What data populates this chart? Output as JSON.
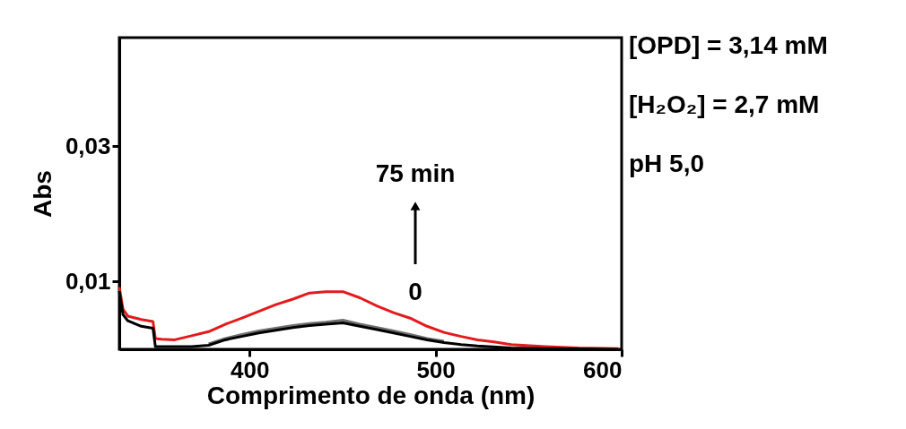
{
  "chart_data": {
    "type": "line",
    "xlabel": "Comprimento de onda (nm)",
    "ylabel": "Abs",
    "xlim": [
      330,
      600
    ],
    "ylim": [
      0,
      0.046
    ],
    "xticks": [
      400,
      500,
      600
    ],
    "yticks": [
      {
        "value": 0.01,
        "label": "0,01"
      },
      {
        "value": 0.03,
        "label": "0,03"
      }
    ],
    "grid": false,
    "marker": "none",
    "line_style": "solid",
    "series": [
      {
        "color": "#e41a1c",
        "x": [
          330,
          332,
          334.6,
          341.8,
          348.1,
          349.4,
          352.6,
          359.8,
          368.9,
          378,
          387,
          395.9,
          405,
          414.1,
          423.3,
          432.2,
          441,
          450.2,
          459.3,
          468.5,
          477.4,
          486.3,
          495.4,
          504.5,
          513.7,
          522.5,
          531.4,
          540.6,
          558.8,
          576.9,
          598.3
        ],
        "values": [
          0.0092,
          0.0059,
          0.0049,
          0.0044,
          0.0041,
          0.0016,
          0.0015,
          0.0014,
          0.002,
          0.0026,
          0.0037,
          0.0046,
          0.0056,
          0.0066,
          0.0074,
          0.0083,
          0.0085,
          0.0085,
          0.0076,
          0.0064,
          0.0054,
          0.0046,
          0.0034,
          0.0025,
          0.0019,
          0.0014,
          0.0011,
          0.0007,
          0.0004,
          0.0002,
          0.0001
        ]
      },
      {
        "color": "#707070",
        "x": [
          378,
          387,
          395.9,
          405,
          414.1,
          423.3,
          432.2,
          441,
          450.2,
          459.3,
          468.5,
          477.4,
          486.3,
          495.4,
          504.5
        ],
        "values": [
          0.0008,
          0.0016,
          0.0022,
          0.0027,
          0.0031,
          0.0035,
          0.0038,
          0.004,
          0.0043,
          0.0037,
          0.0032,
          0.0027,
          0.0022,
          0.0016,
          0.0012
        ]
      },
      {
        "color": "#000000",
        "x": [
          330,
          332,
          334.6,
          341.8,
          348.1,
          349.4,
          359.8,
          368.9,
          378,
          387,
          395.9,
          405,
          414.1,
          423.3,
          432.2,
          441,
          450.2,
          459.3,
          468.5,
          477.4,
          486.3,
          495.4,
          504.5,
          513.7,
          522.5,
          540.6,
          558.8,
          598.3
        ],
        "values": [
          0.0086,
          0.0051,
          0.0042,
          0.0034,
          0.0031,
          0.0004,
          0.0004,
          0.0004,
          0.0006,
          0.0014,
          0.0019,
          0.0024,
          0.0028,
          0.0032,
          0.0035,
          0.0037,
          0.0039,
          0.0034,
          0.0029,
          0.0024,
          0.0019,
          0.0014,
          0.001,
          0.0007,
          0.0005,
          0.0002,
          0.0001,
          0
        ]
      }
    ],
    "annotations": [
      "75 min",
      "0",
      "[OPD] = 3,14  mM",
      "[H₂O₂] = 2,7 mM",
      "pH 5,0"
    ]
  }
}
